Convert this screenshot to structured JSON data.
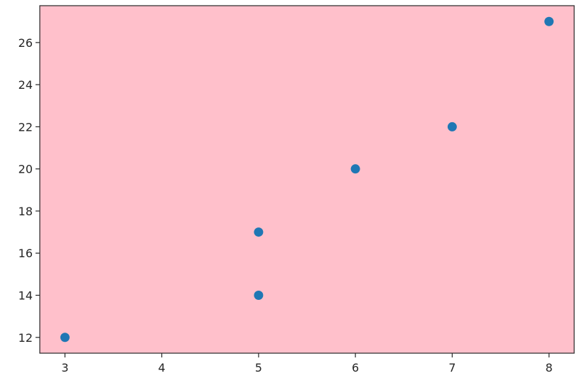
{
  "chart_data": {
    "type": "scatter",
    "title": "",
    "xlabel": "",
    "ylabel": "",
    "x": [
      3,
      5,
      5,
      6,
      7,
      8
    ],
    "y": [
      12,
      14,
      17,
      20,
      22,
      27
    ],
    "xlim": [
      2.74,
      8.26
    ],
    "ylim": [
      11.25,
      27.75
    ],
    "xticks": [
      3,
      4,
      5,
      6,
      7,
      8
    ],
    "yticks": [
      12,
      14,
      16,
      18,
      20,
      22,
      24,
      26
    ],
    "grid": false,
    "legend": "none",
    "colors": {
      "plot_background": "#ffc0cb",
      "marker": "#1f77b4",
      "axes_edge": "#262626"
    }
  }
}
